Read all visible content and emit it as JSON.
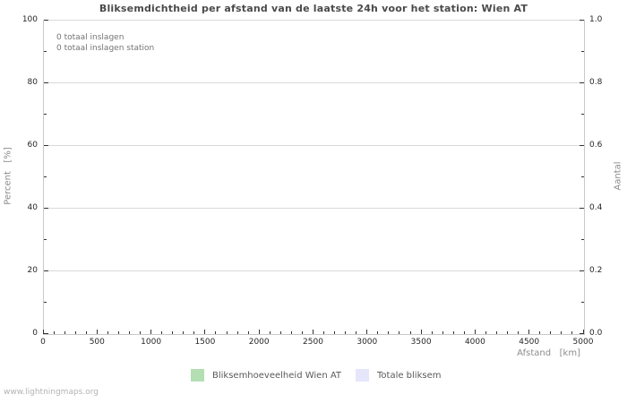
{
  "watermark": "www.lightningmaps.org",
  "chart_data": {
    "type": "bar",
    "title": "Bliksemdichtheid per afstand van de laatste 24h voor het station: Wien AT",
    "annotations": [
      "0 totaal inslagen",
      "0 totaal inslagen station"
    ],
    "grid": true,
    "legend_position": "bottom-center",
    "x_axis": {
      "label": "Afstand   [km]",
      "min": 0,
      "max": 5000,
      "major_step": 500,
      "minor_step": 100,
      "tick_labels": [
        "0",
        "500",
        "1000",
        "1500",
        "2000",
        "2500",
        "3000",
        "3500",
        "4000",
        "4500",
        "5000"
      ]
    },
    "y_left": {
      "label": "Percent   [%]",
      "min": 0,
      "max": 100,
      "major_step": 20,
      "minor_step": 10,
      "tick_labels": [
        "0",
        "20",
        "40",
        "60",
        "80",
        "100"
      ]
    },
    "y_right": {
      "label": "Aantal",
      "min": 0,
      "max": 1.0,
      "major_step": 0.2,
      "minor_step": 0.1,
      "tick_labels": [
        "0.0",
        "0.2",
        "0.4",
        "0.6",
        "0.8",
        "1.0"
      ]
    },
    "series": [
      {
        "name": "Bliksemhoeveelheid Wien AT",
        "color": "#b3dfb3",
        "values": []
      },
      {
        "name": "Totale bliksem",
        "color": "#e6e6fa",
        "values": []
      }
    ],
    "colors": {
      "grid": "#d9d9d9",
      "border": "#c9c9c9",
      "tick": "#333333",
      "title": "#4a4a4a",
      "axis_label": "#8c8c8c",
      "tick_label": "#262626",
      "annotation": "#737373",
      "legend_text": "#595959",
      "watermark": "#b3b3b3"
    }
  }
}
